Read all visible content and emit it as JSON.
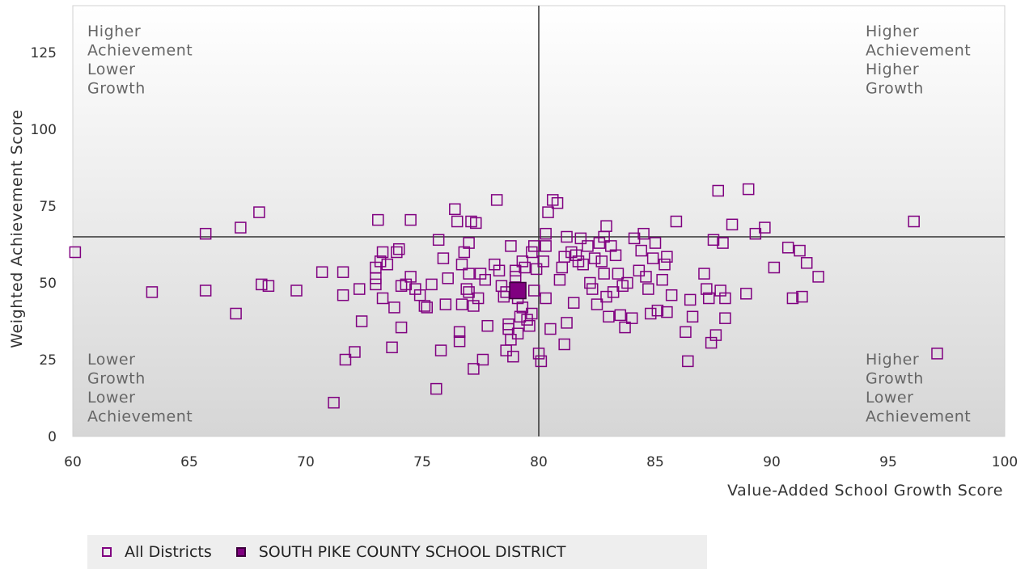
{
  "chart_data": {
    "type": "scatter",
    "title": "",
    "xlabel": "Value-Added School Growth Score",
    "ylabel": "Weighted Achievement Score",
    "xlim": [
      60,
      100
    ],
    "ylim": [
      0,
      140
    ],
    "x_ticks": [
      "60",
      "65",
      "70",
      "75",
      "80",
      "85",
      "90",
      "95",
      "100"
    ],
    "y_ticks": [
      "0",
      "25",
      "50",
      "75",
      "100",
      "125"
    ],
    "reference_lines": {
      "x": 80,
      "y": 65
    },
    "quadrant_labels": {
      "top_left": [
        "Higher",
        "Achievement",
        "Lower",
        "Growth"
      ],
      "top_right": [
        "Higher",
        "Achievement",
        "Higher",
        "Growth"
      ],
      "bottom_left": [
        "Lower",
        "Growth",
        "Lower",
        "Achievement"
      ],
      "bottom_right": [
        "Higher",
        "Growth",
        "Lower",
        "Achievement"
      ]
    },
    "grid": false,
    "legend_position": "bottom-left",
    "series": [
      {
        "name": "All Districts",
        "marker": "hollow-square",
        "color": "#800080",
        "points": [
          [
            60.1,
            60
          ],
          [
            63.4,
            47
          ],
          [
            65.7,
            66
          ],
          [
            65.7,
            47.5
          ],
          [
            67,
            40
          ],
          [
            67.2,
            68
          ],
          [
            68,
            73
          ],
          [
            68.1,
            49.5
          ],
          [
            68.4,
            49
          ],
          [
            69.6,
            47.5
          ],
          [
            70.7,
            53.5
          ],
          [
            71.2,
            11
          ],
          [
            71.6,
            53.5
          ],
          [
            71.6,
            46
          ],
          [
            71.7,
            25
          ],
          [
            72.1,
            27.5
          ],
          [
            72.3,
            48
          ],
          [
            72.4,
            37.5
          ],
          [
            73,
            49.5
          ],
          [
            73,
            51.5
          ],
          [
            73,
            55
          ],
          [
            73.1,
            70.5
          ],
          [
            73.2,
            57
          ],
          [
            73.3,
            60
          ],
          [
            73.3,
            45
          ],
          [
            73.5,
            56
          ],
          [
            73.7,
            29
          ],
          [
            73.8,
            42
          ],
          [
            73.9,
            60
          ],
          [
            74,
            61
          ],
          [
            74.1,
            35.5
          ],
          [
            74.1,
            49
          ],
          [
            74.3,
            49.5
          ],
          [
            74.5,
            52
          ],
          [
            74.5,
            70.5
          ],
          [
            74.7,
            48
          ],
          [
            74.9,
            46
          ],
          [
            75.1,
            42.5
          ],
          [
            75.2,
            42
          ],
          [
            75.4,
            49.5
          ],
          [
            75.6,
            15.5
          ],
          [
            75.7,
            64
          ],
          [
            75.8,
            28
          ],
          [
            75.9,
            58
          ],
          [
            76,
            43
          ],
          [
            76.1,
            51.5
          ],
          [
            76.4,
            74
          ],
          [
            76.5,
            70
          ],
          [
            76.6,
            34
          ],
          [
            76.6,
            31
          ],
          [
            76.7,
            43
          ],
          [
            76.7,
            56
          ],
          [
            76.8,
            60
          ],
          [
            76.9,
            48
          ],
          [
            77,
            63
          ],
          [
            77,
            47
          ],
          [
            77,
            53
          ],
          [
            77.1,
            70
          ],
          [
            77.2,
            42.5
          ],
          [
            77.2,
            22
          ],
          [
            77.3,
            69.5
          ],
          [
            77.4,
            45
          ],
          [
            77.5,
            53
          ],
          [
            77.6,
            25
          ],
          [
            77.7,
            51
          ],
          [
            77.8,
            36
          ],
          [
            78.1,
            56
          ],
          [
            78.2,
            77
          ],
          [
            78.3,
            54
          ],
          [
            78.4,
            49
          ],
          [
            78.5,
            45.5
          ],
          [
            78.6,
            47
          ],
          [
            78.6,
            28
          ],
          [
            78.7,
            36.5
          ],
          [
            78.7,
            35
          ],
          [
            78.8,
            62
          ],
          [
            78.8,
            31.5
          ],
          [
            78.9,
            26
          ],
          [
            79,
            54
          ],
          [
            79,
            52
          ],
          [
            79.1,
            45
          ],
          [
            79.1,
            33.5
          ],
          [
            79.2,
            39
          ],
          [
            79.3,
            57
          ],
          [
            79.3,
            42
          ],
          [
            79.4,
            55
          ],
          [
            79.5,
            38
          ],
          [
            79.6,
            36
          ],
          [
            79.7,
            60
          ],
          [
            79.7,
            40
          ],
          [
            79.8,
            47.5
          ],
          [
            79.8,
            62
          ],
          [
            79.9,
            54.5
          ],
          [
            80,
            27
          ],
          [
            80.1,
            24.5
          ],
          [
            80.2,
            57
          ],
          [
            80.3,
            66
          ],
          [
            80.3,
            62
          ],
          [
            80.3,
            45
          ],
          [
            80.4,
            73
          ],
          [
            80.5,
            35
          ],
          [
            80.6,
            77
          ],
          [
            80.8,
            76
          ],
          [
            80.9,
            51
          ],
          [
            81,
            55
          ],
          [
            81.1,
            30
          ],
          [
            81.1,
            58.5
          ],
          [
            81.2,
            65
          ],
          [
            81.2,
            37
          ],
          [
            81.4,
            60
          ],
          [
            81.5,
            43.5
          ],
          [
            81.6,
            59
          ],
          [
            81.7,
            57
          ],
          [
            81.8,
            64.5
          ],
          [
            81.9,
            56
          ],
          [
            82.1,
            62
          ],
          [
            82.2,
            50
          ],
          [
            82.3,
            48
          ],
          [
            82.4,
            58
          ],
          [
            82.5,
            43
          ],
          [
            82.6,
            63
          ],
          [
            82.7,
            57
          ],
          [
            82.8,
            65
          ],
          [
            82.8,
            53
          ],
          [
            82.9,
            68.5
          ],
          [
            82.9,
            45.5
          ],
          [
            83,
            39
          ],
          [
            83.1,
            62
          ],
          [
            83.2,
            47
          ],
          [
            83.3,
            59
          ],
          [
            83.4,
            53
          ],
          [
            83.5,
            39.5
          ],
          [
            83.6,
            49
          ],
          [
            83.7,
            35.5
          ],
          [
            83.8,
            50
          ],
          [
            84,
            38.5
          ],
          [
            84.1,
            64.5
          ],
          [
            84.3,
            54
          ],
          [
            84.4,
            60.5
          ],
          [
            84.5,
            66
          ],
          [
            84.6,
            52
          ],
          [
            84.7,
            48
          ],
          [
            84.8,
            40
          ],
          [
            84.9,
            58
          ],
          [
            85,
            63
          ],
          [
            85.1,
            41
          ],
          [
            85.3,
            51
          ],
          [
            85.4,
            56
          ],
          [
            85.5,
            58.5
          ],
          [
            85.5,
            40.5
          ],
          [
            85.7,
            46
          ],
          [
            85.9,
            70
          ],
          [
            86.3,
            34
          ],
          [
            86.4,
            24.5
          ],
          [
            86.5,
            44.5
          ],
          [
            86.6,
            39
          ],
          [
            87.1,
            53
          ],
          [
            87.2,
            48
          ],
          [
            87.3,
            45
          ],
          [
            87.4,
            30.5
          ],
          [
            87.5,
            64
          ],
          [
            87.6,
            33
          ],
          [
            87.7,
            80
          ],
          [
            87.8,
            47.5
          ],
          [
            87.9,
            63
          ],
          [
            88,
            38.5
          ],
          [
            88,
            45
          ],
          [
            88.3,
            69
          ],
          [
            88.9,
            46.5
          ],
          [
            89,
            80.5
          ],
          [
            89.3,
            66
          ],
          [
            89.7,
            68
          ],
          [
            90.1,
            55
          ],
          [
            90.7,
            61.5
          ],
          [
            90.9,
            45
          ],
          [
            91.2,
            60.5
          ],
          [
            91.3,
            45.5
          ],
          [
            91.5,
            56.5
          ],
          [
            92,
            52
          ],
          [
            96.1,
            70
          ],
          [
            97.1,
            27
          ]
        ]
      },
      {
        "name": "SOUTH PIKE COUNTY SCHOOL DISTRICT",
        "marker": "filled-square",
        "color": "#800080",
        "points": [
          [
            79.1,
            47.5
          ]
        ]
      }
    ]
  },
  "legend": {
    "items": [
      {
        "label": "All Districts"
      },
      {
        "label": "SOUTH PIKE COUNTY SCHOOL DISTRICT"
      }
    ]
  }
}
